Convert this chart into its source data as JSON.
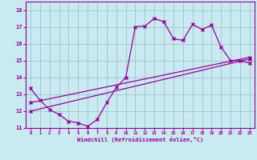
{
  "xlabel": "Windchill (Refroidissement éolien,°C)",
  "bg_color": "#c8eaf0",
  "line_color": "#990099",
  "grid_color": "#99bbcc",
  "xmin": 0,
  "xmax": 23,
  "ymin": 11,
  "ymax": 18,
  "yticks": [
    11,
    12,
    13,
    14,
    15,
    16,
    17,
    18
  ],
  "xticks": [
    0,
    1,
    2,
    3,
    4,
    5,
    6,
    7,
    8,
    9,
    10,
    11,
    12,
    13,
    14,
    15,
    16,
    17,
    18,
    19,
    20,
    21,
    22,
    23
  ],
  "series1_x": [
    0,
    1,
    2,
    3,
    4,
    5,
    6,
    7,
    8,
    9,
    10,
    11,
    12,
    13,
    14,
    15,
    16,
    17,
    18,
    19,
    20,
    21,
    22,
    23
  ],
  "series1_y": [
    13.35,
    12.65,
    12.1,
    11.8,
    11.4,
    11.3,
    11.1,
    11.5,
    12.5,
    13.4,
    14.0,
    17.0,
    17.05,
    17.5,
    17.3,
    16.3,
    16.2,
    17.15,
    16.85,
    17.1,
    15.8,
    15.0,
    15.0,
    14.85
  ],
  "series2_x": [
    0,
    23
  ],
  "series2_y": [
    12.0,
    15.1
  ],
  "series3_x": [
    0,
    23
  ],
  "series3_y": [
    12.5,
    15.2
  ]
}
